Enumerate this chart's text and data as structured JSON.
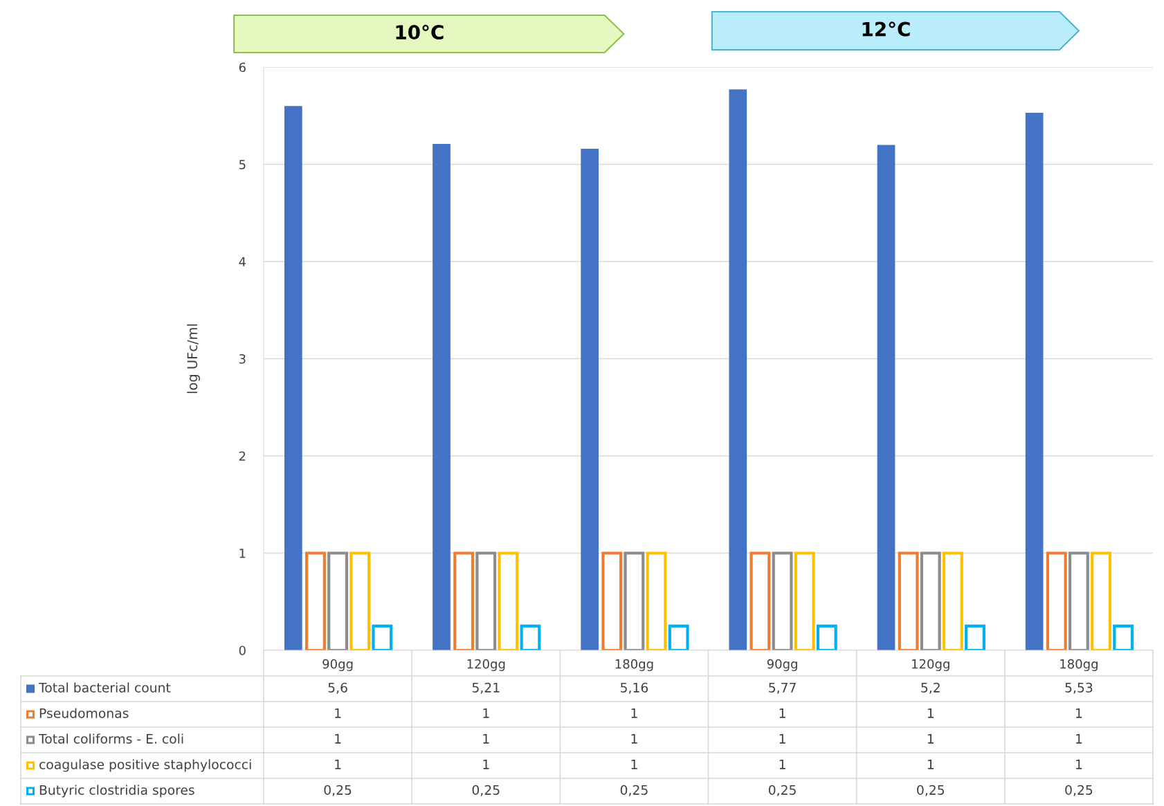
{
  "chart_data": {
    "type": "bar",
    "ylabel": "log UFc/ml",
    "annotations": [
      "10°C",
      "12°C"
    ],
    "categories": [
      "90gg",
      "120gg",
      "180gg",
      "90gg",
      "120gg",
      "180gg"
    ],
    "series": [
      {
        "name": "Total bacterial count",
        "color": "#4472c4",
        "values": [
          5.6,
          5.21,
          5.16,
          5.77,
          5.2,
          5.53
        ],
        "value_labels": [
          "5,6",
          "5,21",
          "5,16",
          "5,77",
          "5,2",
          "5,53"
        ]
      },
      {
        "name": "Pseudomonas",
        "color": "#ed7d31",
        "values": [
          1,
          1,
          1,
          1,
          1,
          1
        ],
        "value_labels": [
          "1",
          "1",
          "1",
          "1",
          "1",
          "1"
        ]
      },
      {
        "name": "Total coliforms - E. coli",
        "color": "#8c8c8c",
        "values": [
          1,
          1,
          1,
          1,
          1,
          1
        ],
        "value_labels": [
          "1",
          "1",
          "1",
          "1",
          "1",
          "1"
        ]
      },
      {
        "name": "coagulase positive staphylococci",
        "color": "#ffc000",
        "values": [
          1,
          1,
          1,
          1,
          1,
          1
        ],
        "value_labels": [
          "1",
          "1",
          "1",
          "1",
          "1",
          "1"
        ]
      },
      {
        "name": "Butyric clostridia spores",
        "color": "#00b0f0",
        "values": [
          0.25,
          0.25,
          0.25,
          0.25,
          0.25,
          0.25
        ],
        "value_labels": [
          "0,25",
          "0,25",
          "0,25",
          "0,25",
          "0,25",
          "0,25"
        ]
      }
    ],
    "ylim": [
      0,
      6
    ],
    "yticks": [
      0,
      1,
      2,
      3,
      4,
      5,
      6
    ],
    "grid": "y",
    "legend": "bottom"
  }
}
